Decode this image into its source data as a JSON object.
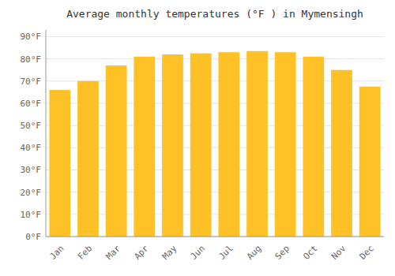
{
  "chart_data": {
    "type": "bar",
    "title": "Average monthly temperatures (°F ) in Mymensingh",
    "categories": [
      "Jan",
      "Feb",
      "Mar",
      "Apr",
      "May",
      "Jun",
      "Jul",
      "Aug",
      "Sep",
      "Oct",
      "Nov",
      "Dec"
    ],
    "values": [
      66,
      70,
      77,
      81,
      82,
      82.5,
      83,
      83.5,
      83,
      81,
      75,
      67.5
    ],
    "color": "#FFC125",
    "ylim": [
      0,
      93
    ],
    "yticks": [
      {
        "value": 0,
        "label": "0°F"
      },
      {
        "value": 10,
        "label": "10°F"
      },
      {
        "value": 20,
        "label": "20°F"
      },
      {
        "value": 30,
        "label": "30°F"
      },
      {
        "value": 40,
        "label": "40°F"
      },
      {
        "value": 50,
        "label": "50°F"
      },
      {
        "value": 60,
        "label": "60°F"
      },
      {
        "value": 70,
        "label": "70°F"
      },
      {
        "value": 80,
        "label": "80°F"
      },
      {
        "value": 90,
        "label": "90°F"
      }
    ],
    "grid": true
  }
}
